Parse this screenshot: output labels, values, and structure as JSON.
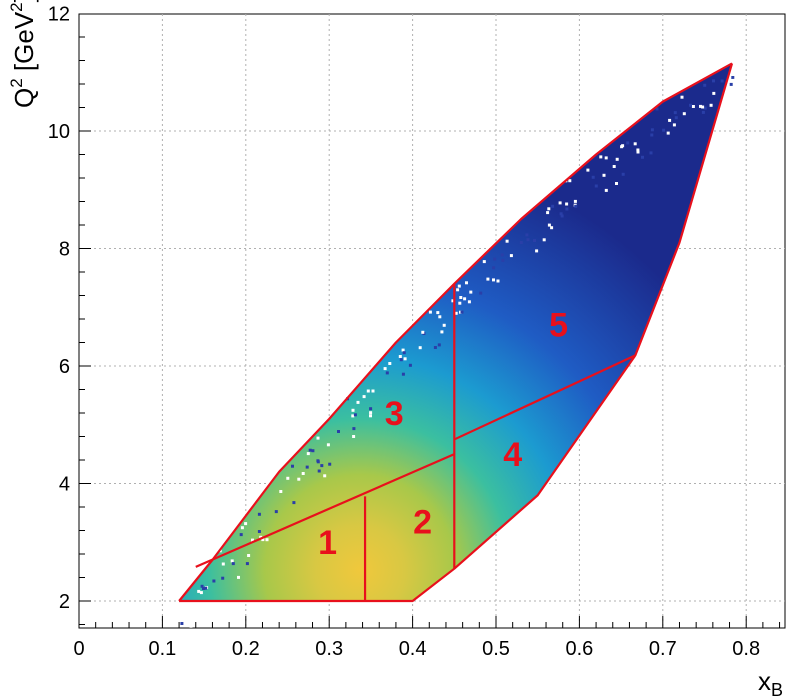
{
  "chart_data": {
    "type": "heatmap",
    "title": "",
    "xlabel_main": "x",
    "xlabel_sub": "B",
    "ylabel_main": "Q",
    "ylabel_sup1": "2",
    "ylabel_mid": " [GeV",
    "ylabel_sup2": "2",
    "ylabel_end": "]",
    "xlim": [
      0,
      0.85
    ],
    "ylim": [
      1.5,
      12
    ],
    "grid": true,
    "x_ticks": [
      0,
      0.1,
      0.2,
      0.3,
      0.4,
      0.5,
      0.6,
      0.7,
      0.8
    ],
    "x_tick_labels": [
      "0",
      "0.1",
      "0.2",
      "0.3",
      "0.4",
      "0.5",
      "0.6",
      "0.7",
      "0.8"
    ],
    "y_ticks": [
      2,
      4,
      6,
      8,
      10,
      12
    ],
    "y_tick_labels": [
      "2",
      "4",
      "6",
      "8",
      "10",
      "12"
    ],
    "colorscale": [
      "#1b2a8c",
      "#1f5cc4",
      "#1c9bd0",
      "#3bbfa0",
      "#a8c84a",
      "#f0c83c"
    ],
    "boundary_color": "#e8101c",
    "upper_boundary": [
      [
        0.12,
        2.0
      ],
      [
        0.16,
        2.7
      ],
      [
        0.24,
        4.2
      ],
      [
        0.3,
        5.1
      ],
      [
        0.38,
        6.4
      ],
      [
        0.45,
        7.4
      ],
      [
        0.53,
        8.5
      ],
      [
        0.62,
        9.6
      ],
      [
        0.7,
        10.5
      ],
      [
        0.783,
        11.15
      ]
    ],
    "lower_boundary": [
      [
        0.12,
        2.0
      ],
      [
        0.4,
        2.0
      ],
      [
        0.45,
        2.55
      ],
      [
        0.55,
        3.8
      ],
      [
        0.667,
        6.18
      ],
      [
        0.72,
        8.1
      ],
      [
        0.783,
        11.15
      ]
    ],
    "bin_edges": [
      [
        [
          0.14,
          2.58
        ],
        [
          0.45,
          4.5
        ]
      ],
      [
        [
          0.45,
          4.75
        ],
        [
          0.667,
          6.18
        ]
      ],
      [
        [
          0.343,
          2.0
        ],
        [
          0.343,
          3.78
        ]
      ],
      [
        [
          0.45,
          2.55
        ],
        [
          0.45,
          7.4
        ]
      ]
    ],
    "regions": [
      {
        "label": "1",
        "x": 0.298,
        "y": 2.8
      },
      {
        "label": "2",
        "x": 0.412,
        "y": 3.15
      },
      {
        "label": "3",
        "x": 0.378,
        "y": 5.0
      },
      {
        "label": "4",
        "x": 0.52,
        "y": 4.3
      },
      {
        "label": "5",
        "x": 0.575,
        "y": 6.5
      }
    ]
  }
}
